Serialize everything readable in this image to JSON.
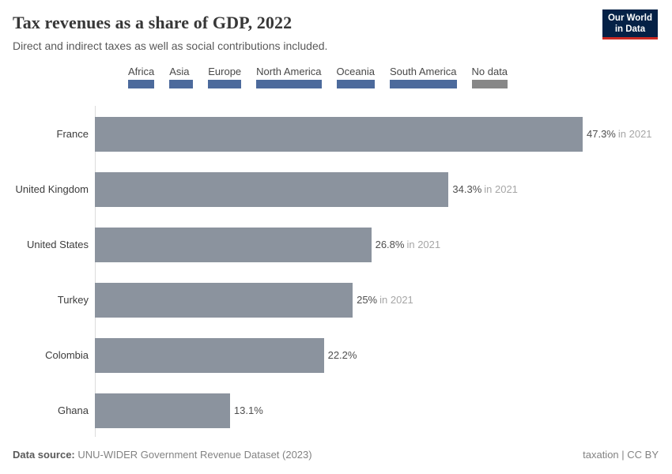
{
  "header": {
    "title": "Tax revenues as a share of GDP, 2022",
    "subtitle": "Direct and indirect taxes as well as social contributions included.",
    "logo": {
      "line1": "Our World",
      "line2": "in Data"
    }
  },
  "legend": {
    "items": [
      {
        "label": "Africa",
        "color": "#4c6a9c"
      },
      {
        "label": "Asia",
        "color": "#4c6a9c"
      },
      {
        "label": "Europe",
        "color": "#4c6a9c"
      },
      {
        "label": "North America",
        "color": "#4c6a9c"
      },
      {
        "label": "Oceania",
        "color": "#4c6a9c"
      },
      {
        "label": "South America",
        "color": "#4c6a9c"
      },
      {
        "label": "No data",
        "color": "#878787"
      }
    ]
  },
  "chart_data": {
    "type": "bar",
    "orientation": "horizontal",
    "title": "Tax revenues as a share of GDP, 2022",
    "subtitle": "Direct and indirect taxes as well as social contributions included.",
    "categories": [
      "France",
      "United Kingdom",
      "United States",
      "Turkey",
      "Colombia",
      "Ghana"
    ],
    "values": [
      47.3,
      34.3,
      26.8,
      25,
      22.2,
      13.1
    ],
    "value_labels": [
      "47.3%",
      "34.3%",
      "26.8%",
      "25%",
      "22.2%",
      "13.1%"
    ],
    "value_suffixes": [
      "in 2021",
      "in 2021",
      "in 2021",
      "in 2021",
      "",
      ""
    ],
    "xlim": [
      0,
      47.3
    ],
    "bar_color": "#8b939e",
    "grid": false,
    "legend_position": "top"
  },
  "footer": {
    "source_label": "Data source:",
    "source_text": "UNU-WIDER Government Revenue Dataset (2023)",
    "right_text": "taxation | CC BY"
  }
}
